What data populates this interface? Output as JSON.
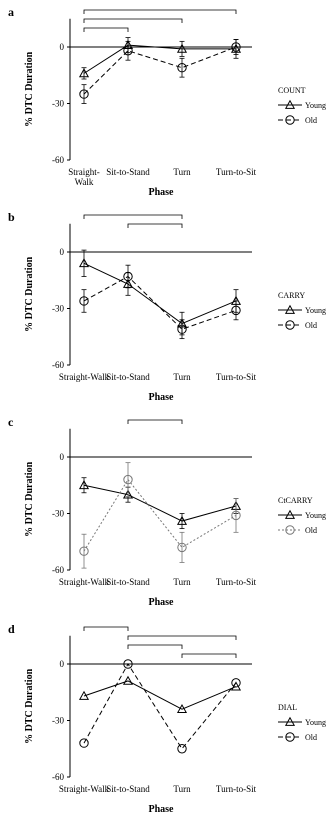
{
  "chart_data": [
    {
      "panel": "a",
      "type": "line",
      "legend_title": "COUNT",
      "ylabel": "% DTC Duration",
      "xlabel": "Phase",
      "categories": [
        "Straight-\nWalk",
        "Sit-to-Stand",
        "Turn",
        "Turn-to-Sit"
      ],
      "yticks": [
        0,
        -30,
        -60
      ],
      "ylim": [
        -60,
        15
      ],
      "series": [
        {
          "name": "Young",
          "marker": "triangle",
          "dash": "solid",
          "values": [
            -14,
            1,
            -1,
            -1
          ],
          "errors": [
            3,
            4,
            4,
            5
          ]
        },
        {
          "name": "Old",
          "marker": "circle",
          "dash": "dashed",
          "values": [
            -25,
            -2,
            -11,
            0
          ],
          "errors": [
            5,
            5,
            5,
            4
          ]
        }
      ],
      "brackets": [
        [
          0,
          3
        ],
        [
          0,
          2
        ],
        [
          0,
          1
        ]
      ]
    },
    {
      "panel": "b",
      "type": "line",
      "legend_title": "CARRY",
      "ylabel": "% DTC Duration",
      "xlabel": "Phase",
      "categories": [
        "Straight-Walk",
        "Sit-to-Stand",
        "Turn",
        "Turn-to-Sit"
      ],
      "yticks": [
        0,
        -30,
        -60
      ],
      "ylim": [
        -60,
        15
      ],
      "series": [
        {
          "name": "Young",
          "marker": "triangle",
          "dash": "solid",
          "values": [
            -6,
            -17,
            -38,
            -26
          ],
          "errors": [
            7,
            6,
            6,
            6
          ]
        },
        {
          "name": "Old",
          "marker": "circle",
          "dash": "dashed",
          "values": [
            -26,
            -13,
            -41,
            -31
          ],
          "errors": [
            6,
            6,
            5,
            5
          ]
        }
      ],
      "brackets": [
        [
          0,
          2
        ],
        [
          1,
          2
        ]
      ]
    },
    {
      "panel": "c",
      "type": "line",
      "legend_title": "CtCARRY",
      "ylabel": "% DTC Duration",
      "xlabel": "Phase",
      "categories": [
        "Straight-Walk",
        "Sit-to-Stand",
        "Turn",
        "Turn-to-Sit"
      ],
      "yticks": [
        0,
        -30,
        -60
      ],
      "ylim": [
        -60,
        15
      ],
      "series": [
        {
          "name": "Young",
          "marker": "triangle",
          "dash": "solid",
          "values": [
            -15,
            -20,
            -34,
            -26
          ],
          "errors": [
            4,
            4,
            4,
            4
          ]
        },
        {
          "name": "Old",
          "marker": "circle",
          "dash": "dotted",
          "values": [
            -50,
            -12,
            -48,
            -31
          ],
          "errors": [
            9,
            9,
            8,
            9
          ]
        }
      ],
      "brackets": [
        [
          1,
          2
        ]
      ]
    },
    {
      "panel": "d",
      "type": "line",
      "legend_title": "DIAL",
      "ylabel": "% DTC Duration",
      "xlabel": "Phase",
      "categories": [
        "Straight-Walk",
        "Sit-to-Stand",
        "Turn",
        "Turn-to-Sit"
      ],
      "yticks": [
        0,
        -30,
        -60
      ],
      "ylim": [
        -60,
        15
      ],
      "series": [
        {
          "name": "Young",
          "marker": "triangle",
          "dash": "solid",
          "values": [
            -17,
            -9,
            -24,
            -12
          ],
          "errors": [
            0,
            0,
            0,
            0
          ]
        },
        {
          "name": "Old",
          "marker": "circle",
          "dash": "dashed",
          "values": [
            -42,
            0,
            -45,
            -10
          ],
          "errors": [
            0,
            0,
            0,
            0
          ]
        }
      ],
      "brackets": [
        [
          0,
          1
        ],
        [
          1,
          3
        ],
        [
          1,
          2
        ],
        [
          2,
          3
        ]
      ]
    }
  ]
}
